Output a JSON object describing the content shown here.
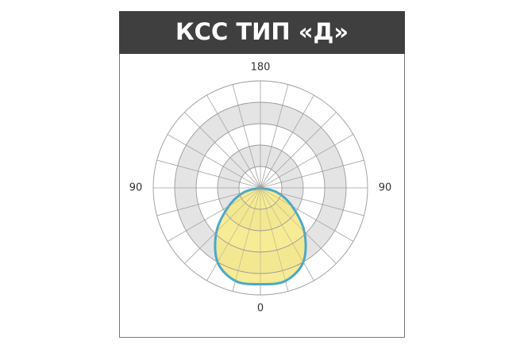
{
  "chart_data": {
    "type": "polar",
    "title": "КСС ТИП «Д»",
    "theta": [
      -90,
      -75,
      -60,
      -45,
      -30,
      -15,
      0,
      15,
      30,
      45,
      60,
      75,
      90
    ],
    "values": [
      0,
      0.8,
      1.7,
      2.9,
      4.0,
      4.5,
      4.5,
      4.5,
      4.0,
      2.9,
      1.7,
      0.8,
      0
    ],
    "color": "#f6e882",
    "edge_color": "#4aa9c9",
    "rlim": [
      0,
      5
    ],
    "rticks": [
      1,
      2,
      3,
      4,
      5
    ],
    "thetaticks": [
      0,
      90,
      180,
      {
        "value": -90,
        "label": "90"
      }
    ],
    "grid": true
  }
}
